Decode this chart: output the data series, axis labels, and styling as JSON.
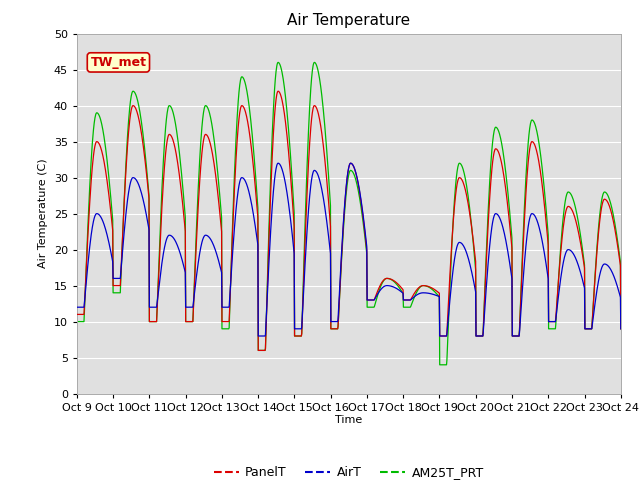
{
  "title": "Air Temperature",
  "ylabel": "Air Temperature (C)",
  "xlabel": "Time",
  "ylim": [
    0,
    50
  ],
  "yticks": [
    0,
    5,
    10,
    15,
    20,
    25,
    30,
    35,
    40,
    45,
    50
  ],
  "xtick_labels": [
    "Oct 9",
    "Oct 10",
    "Oct 11",
    "Oct 12",
    "Oct 13",
    "Oct 14",
    "Oct 15",
    "Oct 16",
    "Oct 17",
    "Oct 18",
    "Oct 19",
    "Oct 20",
    "Oct 21",
    "Oct 22",
    "Oct 23",
    "Oct 24"
  ],
  "annotation_text": "TW_met",
  "annotation_bg": "#ffffcc",
  "annotation_border": "#cc0000",
  "annotation_text_color": "#cc0000",
  "series_colors": [
    "#dd0000",
    "#0000cc",
    "#00bb00"
  ],
  "series_labels": [
    "PanelT",
    "AirT",
    "AM25T_PRT"
  ],
  "bg_color": "#e8e8e8",
  "plot_bg_color": "#e0e0e0",
  "title_fontsize": 11,
  "axis_fontsize": 8,
  "legend_fontsize": 9,
  "n_days": 15,
  "n_points_per_day": 96
}
